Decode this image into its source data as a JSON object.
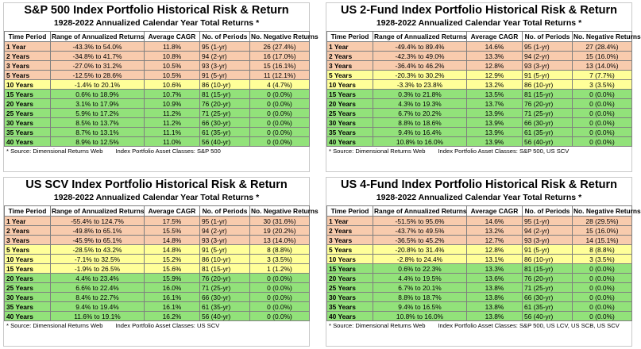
{
  "headers": [
    "Time Period",
    "Range of Annualized Returns",
    "Average CAGR",
    "No. of Periods",
    "No. Negative Returns"
  ],
  "colors": {
    "orange": "#f8cbad",
    "yellow": "#ffff99",
    "green": "#92e27a"
  },
  "panels": [
    {
      "title": "S&P 500 Index Portfolio Historical Risk & Return",
      "subtitle": "1928-2022 Annualized Calendar Year Total Returns *",
      "source": "* Source: Dimensional Returns Web",
      "asset_classes": "Index Portfolio Asset Classes: S&P 500",
      "rows": [
        {
          "period": "1 Year",
          "range": "-43.3% to 54.0%",
          "cagr": "11.8%",
          "periods": "95 (1-yr)",
          "neg": "26 (27.4%)",
          "band": "orange"
        },
        {
          "period": "2 Years",
          "range": "-34.8% to 41.7%",
          "cagr": "10.8%",
          "periods": "94 (2-yr)",
          "neg": "16 (17.0%)",
          "band": "orange"
        },
        {
          "period": "3 Years",
          "range": "-27.0% to 31.2%",
          "cagr": "10.5%",
          "periods": "93 (3-yr)",
          "neg": "15 (16.1%)",
          "band": "orange"
        },
        {
          "period": "5 Years",
          "range": "-12.5% to 28.6%",
          "cagr": "10.5%",
          "periods": "91 (5-yr)",
          "neg": "11 (12.1%)",
          "band": "orange"
        },
        {
          "period": "10 Years",
          "range": "-1.4% to 20.1%",
          "cagr": "10.6%",
          "periods": "86 (10-yr)",
          "neg": "4 (4.7%)",
          "band": "yellow"
        },
        {
          "period": "15 Years",
          "range": "0.6% to 18.9%",
          "cagr": "10.7%",
          "periods": "81 (15-yr)",
          "neg": "0 (0.0%)",
          "band": "green"
        },
        {
          "period": "20 Years",
          "range": "3.1% to 17.9%",
          "cagr": "10.9%",
          "periods": "76 (20-yr)",
          "neg": "0 (0.0%)",
          "band": "green"
        },
        {
          "period": "25 Years",
          "range": "5.9% to 17.2%",
          "cagr": "11.2%",
          "periods": "71 (25-yr)",
          "neg": "0 (0.0%)",
          "band": "green"
        },
        {
          "period": "30 Years",
          "range": "8.5% to 13.7%",
          "cagr": "11.2%",
          "periods": "66 (30-yr)",
          "neg": "0 (0.0%)",
          "band": "green"
        },
        {
          "period": "35 Years",
          "range": "8.7% to 13.1%",
          "cagr": "11.1%",
          "periods": "61 (35-yr)",
          "neg": "0 (0.0%)",
          "band": "green"
        },
        {
          "period": "40 Years",
          "range": "8.9% to 12.5%",
          "cagr": "11.0%",
          "periods": "56 (40-yr)",
          "neg": "0 (0.0%)",
          "band": "green"
        }
      ]
    },
    {
      "title": "US 2-Fund Index Portfolio Historical Risk & Return",
      "subtitle": "1928-2022 Annualized Calendar Year Total Returns *",
      "source": "* Source: Dimensional Returns Web",
      "asset_classes": "Index Portfolio Asset Classes: S&P 500, US SCV",
      "rows": [
        {
          "period": "1 Year",
          "range": "-49.4% to 89.4%",
          "cagr": "14.6%",
          "periods": "95 (1-yr)",
          "neg": "27 (28.4%)",
          "band": "orange"
        },
        {
          "period": "2 Years",
          "range": "-42.3% to 49.0%",
          "cagr": "13.3%",
          "periods": "94 (2-yr)",
          "neg": "15 (16.0%)",
          "band": "orange"
        },
        {
          "period": "3 Years",
          "range": "-36.4% to 46.2%",
          "cagr": "12.8%",
          "periods": "93 (3-yr)",
          "neg": "13 (14.0%)",
          "band": "orange"
        },
        {
          "period": "5 Years",
          "range": "-20.3% to 30.2%",
          "cagr": "12.9%",
          "periods": "91 (5-yr)",
          "neg": "7 (7.7%)",
          "band": "yellow"
        },
        {
          "period": "10 Years",
          "range": "-3.3% to 23.8%",
          "cagr": "13.2%",
          "periods": "86 (10-yr)",
          "neg": "3 (3.5%)",
          "band": "yellow"
        },
        {
          "period": "15 Years",
          "range": "0.3% to 21.8%",
          "cagr": "13.5%",
          "periods": "81 (15-yr)",
          "neg": "0 (0.0%)",
          "band": "green"
        },
        {
          "period": "20 Years",
          "range": "4.3% to 19.3%",
          "cagr": "13.7%",
          "periods": "76 (20-yr)",
          "neg": "0 (0.0%)",
          "band": "green"
        },
        {
          "period": "25 Years",
          "range": "6.7% to 20.2%",
          "cagr": "13.9%",
          "periods": "71 (25-yr)",
          "neg": "0 (0.0%)",
          "band": "green"
        },
        {
          "period": "30 Years",
          "range": "8.8% to 18.6%",
          "cagr": "13.9%",
          "periods": "66 (30-yr)",
          "neg": "0 (0.0%)",
          "band": "green"
        },
        {
          "period": "35 Years",
          "range": "9.4% to 16.4%",
          "cagr": "13.9%",
          "periods": "61 (35-yr)",
          "neg": "0 (0.0%)",
          "band": "green"
        },
        {
          "period": "40 Years",
          "range": "10.8% to 16.0%",
          "cagr": "13.9%",
          "periods": "56 (40-yr)",
          "neg": "0 (0.0%)",
          "band": "green"
        }
      ]
    },
    {
      "title": "US SCV Index Portfolio Historical Risk & Return",
      "subtitle": "1928-2022 Annualized Calendar Year Total Returns *",
      "source": "* Source: Dimensional Returns Web",
      "asset_classes": "Index Portfolio Asset Classes: US SCV",
      "rows": [
        {
          "period": "1 Year",
          "range": "-55.4% to 124.7%",
          "cagr": "17.5%",
          "periods": "95 (1-yr)",
          "neg": "30 (31.6%)",
          "band": "orange"
        },
        {
          "period": "2 Years",
          "range": "-49.8% to 65.1%",
          "cagr": "15.5%",
          "periods": "94 (2-yr)",
          "neg": "19 (20.2%)",
          "band": "orange"
        },
        {
          "period": "3 Years",
          "range": "-45.9% to 65.1%",
          "cagr": "14.8%",
          "periods": "93 (3-yr)",
          "neg": "13 (14.0%)",
          "band": "orange"
        },
        {
          "period": "5 Years",
          "range": "-28.5% to 43.2%",
          "cagr": "14.8%",
          "periods": "91 (5-yr)",
          "neg": "8 (8.8%)",
          "band": "yellow"
        },
        {
          "period": "10 Years",
          "range": "-7.1% to 32.5%",
          "cagr": "15.2%",
          "periods": "86 (10-yr)",
          "neg": "3 (3.5%)",
          "band": "yellow"
        },
        {
          "period": "15 Years",
          "range": "-1.9% to 26.5%",
          "cagr": "15.6%",
          "periods": "81 (15-yr)",
          "neg": "1 (1.2%)",
          "band": "yellow"
        },
        {
          "period": "20 Years",
          "range": "4.4% to 23.4%",
          "cagr": "15.9%",
          "periods": "76 (20-yr)",
          "neg": "0 (0.0%)",
          "band": "green"
        },
        {
          "period": "25 Years",
          "range": "6.6% to 22.4%",
          "cagr": "16.0%",
          "periods": "71 (25-yr)",
          "neg": "0 (0.0%)",
          "band": "green"
        },
        {
          "period": "30 Years",
          "range": "8.4% to 22.7%",
          "cagr": "16.1%",
          "periods": "66 (30-yr)",
          "neg": "0 (0.0%)",
          "band": "green"
        },
        {
          "period": "35 Years",
          "range": "9.4% to 19.4%",
          "cagr": "16.1%",
          "periods": "61 (35-yr)",
          "neg": "0 (0.0%)",
          "band": "green"
        },
        {
          "period": "40 Years",
          "range": "11.6% to 19.1%",
          "cagr": "16.2%",
          "periods": "56 (40-yr)",
          "neg": "0 (0.0%)",
          "band": "green"
        }
      ]
    },
    {
      "title": "US 4-Fund Index Portfolio Historical Risk & Return",
      "subtitle": "1928-2022 Annualized Calendar Year Total Returns *",
      "source": "* Source: Dimensional Returns Web",
      "asset_classes": "Index Portfolio Asset Classes: S&P 500, US LCV, US SCB, US SCV",
      "rows": [
        {
          "period": "1 Year",
          "range": "-51.5% to 95.6%",
          "cagr": "14.6%",
          "periods": "95 (1-yr)",
          "neg": "28 (29.5%)",
          "band": "orange"
        },
        {
          "period": "2 Years",
          "range": "-43.7% to 49.5%",
          "cagr": "13.2%",
          "periods": "94 (2-yr)",
          "neg": "15 (16.0%)",
          "band": "orange"
        },
        {
          "period": "3 Years",
          "range": "-36.5% to 45.2%",
          "cagr": "12.7%",
          "periods": "93 (3-yr)",
          "neg": "14 (15.1%)",
          "band": "orange"
        },
        {
          "period": "5 Years",
          "range": "-20.8% to 31.4%",
          "cagr": "12.8%",
          "periods": "91 (5-yr)",
          "neg": "8 (8.8%)",
          "band": "yellow"
        },
        {
          "period": "10 Years",
          "range": "-2.8% to 24.4%",
          "cagr": "13.1%",
          "periods": "86 (10-yr)",
          "neg": "3 (3.5%)",
          "band": "yellow"
        },
        {
          "period": "15 Years",
          "range": "0.6% to 22.3%",
          "cagr": "13.3%",
          "periods": "81 (15-yr)",
          "neg": "0 (0.0%)",
          "band": "green"
        },
        {
          "period": "20 Years",
          "range": "4.4% to 19.5%",
          "cagr": "13.6%",
          "periods": "76 (20-yr)",
          "neg": "0 (0.0%)",
          "band": "green"
        },
        {
          "period": "25 Years",
          "range": "6.7% to 20.1%",
          "cagr": "13.8%",
          "periods": "71 (25-yr)",
          "neg": "0 (0.0%)",
          "band": "green"
        },
        {
          "period": "30 Years",
          "range": "8.8% to 18.7%",
          "cagr": "13.8%",
          "periods": "66 (30-yr)",
          "neg": "0 (0.0%)",
          "band": "green"
        },
        {
          "period": "35 Years",
          "range": "9.4% to 16.5%",
          "cagr": "13.8%",
          "periods": "61 (35-yr)",
          "neg": "0 (0.0%)",
          "band": "green"
        },
        {
          "period": "40 Years",
          "range": "10.8% to 16.0%",
          "cagr": "13.8%",
          "periods": "56 (40-yr)",
          "neg": "0 (0.0%)",
          "band": "green"
        }
      ]
    }
  ]
}
